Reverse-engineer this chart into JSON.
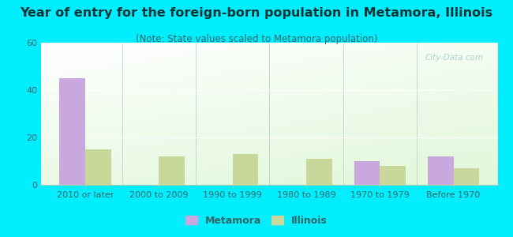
{
  "title": "Year of entry for the foreign-born population in Metamora, Illinois",
  "subtitle": "(Note: State values scaled to Metamora population)",
  "categories": [
    "2010 or later",
    "2000 to 2009",
    "1990 to 1999",
    "1980 to 1989",
    "1970 to 1979",
    "Before 1970"
  ],
  "metamora_values": [
    45,
    0,
    0,
    0,
    10,
    12
  ],
  "illinois_values": [
    15,
    12,
    13,
    11,
    8,
    7
  ],
  "metamora_color": "#c9a8e0",
  "illinois_color": "#c8d89a",
  "background_outer": "#00eeff",
  "ylim": [
    0,
    60
  ],
  "yticks": [
    0,
    20,
    40,
    60
  ],
  "bar_width": 0.35,
  "title_fontsize": 11.5,
  "subtitle_fontsize": 8.5,
  "legend_fontsize": 9,
  "tick_fontsize": 8,
  "title_color": "#003333",
  "subtitle_color": "#336666",
  "tick_color": "#336666",
  "legend_color": "#336666"
}
